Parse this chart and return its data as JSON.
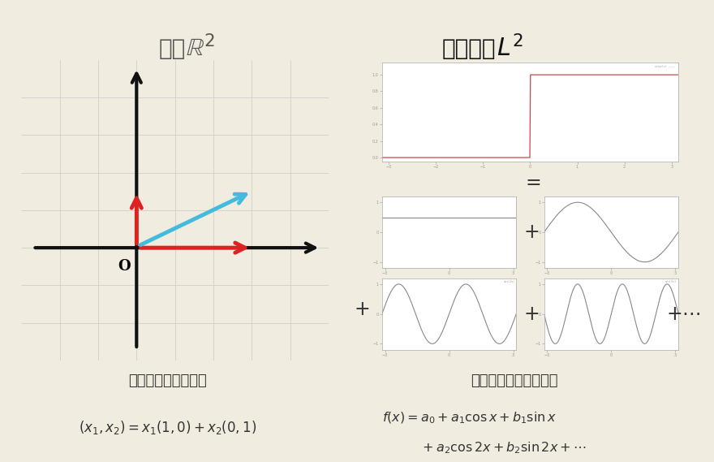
{
  "bg_color": "#f0ece0",
  "grid_color": "#cccccc",
  "arrow_red": "#dd2222",
  "arrow_blue": "#44bbdd",
  "axis_color": "#111111",
  "plot_line_color_top": "#cc4444",
  "small_plot_line_color": "#888888",
  "left_subtitle": "各成分に分解できる",
  "left_formula": "$(x_1, x_2) = x_1(1,0) + x_2(0,1)$",
  "right_subtitle": "各成分に分解できる？",
  "right_formula1": "$f(x) = a_0 + a_1\\cos x + b_1\\sin x$",
  "right_formula2": "$\\quad\\quad\\quad + a_2\\cos 2x + b_2\\sin 2x + \\cdots$"
}
